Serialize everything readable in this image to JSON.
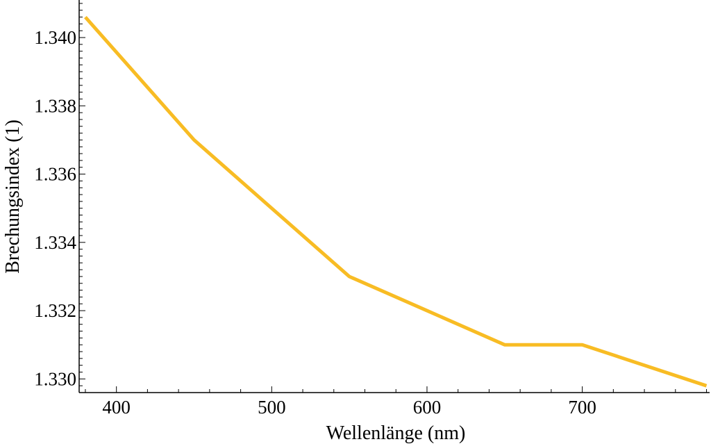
{
  "chart_data": {
    "type": "line",
    "title": "",
    "xlabel": "Wellenlänge (nm)",
    "ylabel": "Brechungsindex (1)",
    "xlim": [
      376,
      782
    ],
    "ylim": [
      1.3296,
      1.3411
    ],
    "xticks": [
      400,
      500,
      600,
      700
    ],
    "xtick_labels": [
      "400",
      "500",
      "600",
      "700"
    ],
    "yticks": [
      1.33,
      1.332,
      1.334,
      1.336,
      1.338,
      1.34
    ],
    "ytick_labels": [
      "1.330",
      "1.332",
      "1.334",
      "1.336",
      "1.338",
      "1.340"
    ],
    "grid": false,
    "series": [
      {
        "name": "Brechungsindex",
        "color": "#f8bc24",
        "x": [
          380,
          450,
          550,
          600,
          650,
          700,
          780
        ],
        "y": [
          1.3406,
          1.337,
          1.333,
          1.332,
          1.331,
          1.331,
          1.3298
        ]
      }
    ]
  }
}
